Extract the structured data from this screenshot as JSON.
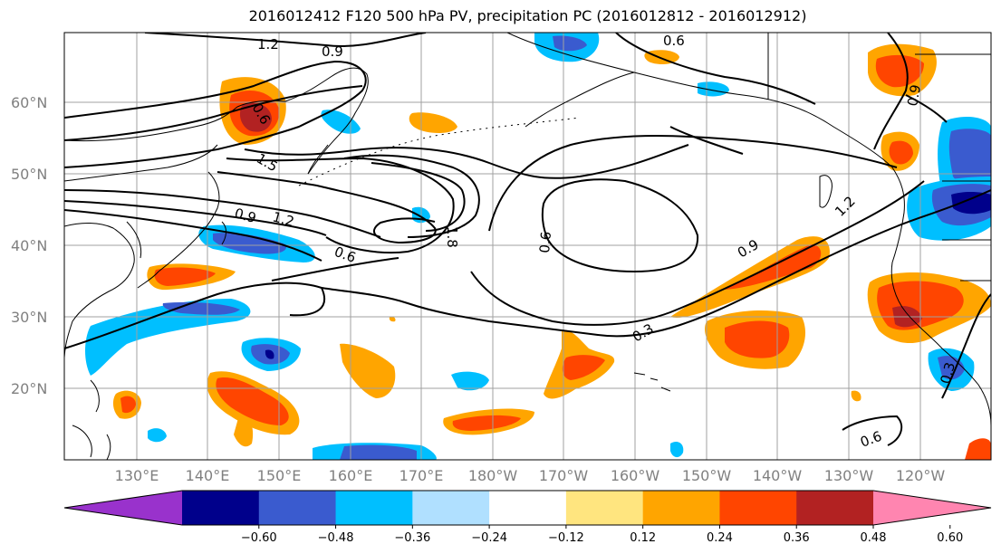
{
  "title": "2016012412 F120 500 hPa PV, precipitation PC (2016012812 - 2016012912)",
  "map": {
    "lat_ticks": [
      "60°N",
      "50°N",
      "40°N",
      "30°N",
      "20°N"
    ],
    "lon_ticks": [
      "130°E",
      "140°E",
      "150°E",
      "160°E",
      "170°E",
      "180°W",
      "170°W",
      "160°W",
      "150°W",
      "140°W",
      "130°W",
      "120°W"
    ],
    "contour_labels": [
      "1.2",
      "0.9",
      "0.6",
      "0.6",
      "1.5",
      "0.9",
      "1.2",
      "0.6",
      "1.8",
      "0.6",
      "0.9",
      "1.2",
      "0.3",
      "0.3",
      "0.6",
      "0.9"
    ]
  },
  "colorbar": {
    "ticks": [
      "−0.60",
      "−0.48",
      "−0.36",
      "−0.24",
      "−0.12",
      "0.12",
      "0.24",
      "0.36",
      "0.48",
      "0.60"
    ],
    "colors": [
      "#9932cc",
      "#00008b",
      "#3a5bcf",
      "#00bfff",
      "#b0e0ff",
      "#ffffff",
      "#ffe57f",
      "#ffa500",
      "#ff4500",
      "#b22222",
      "#ff85b0"
    ]
  }
}
